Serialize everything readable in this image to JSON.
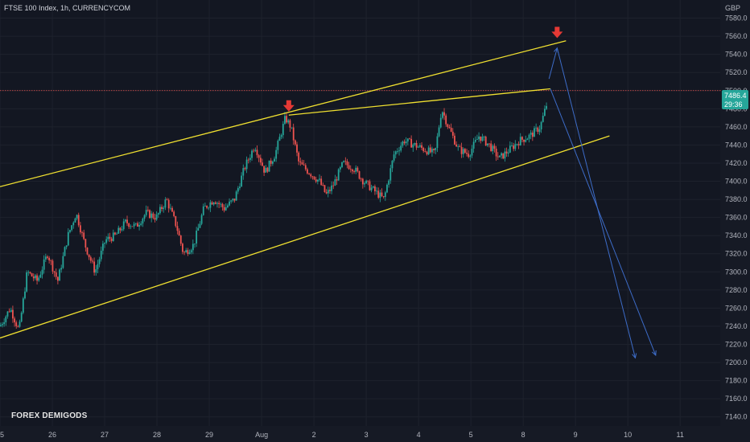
{
  "header": {
    "title": "FTSE 100 Index, 1h, CURRENCYCOM",
    "currency": "GBP"
  },
  "watermark": "FOREX DEMIGODS",
  "price_tag": {
    "price": "7486.4",
    "countdown": "29:36"
  },
  "colors": {
    "background": "#161a25",
    "up": "#26a69a",
    "down": "#ef5350",
    "channel": "#f0e030",
    "projection": "#3d6cc8",
    "marker": "#e53935",
    "price_tag": "#26a69a"
  },
  "chart_data": {
    "type": "candlestick",
    "title": "FTSE 100 Index, 1h, CURRENCYCOM",
    "ylabel": "GBP",
    "ylim": [
      7130,
      7600
    ],
    "xlim": [
      0,
      1060
    ],
    "yticks": [
      7580.0,
      7560.0,
      7540.0,
      7520.0,
      7500.0,
      7480.0,
      7460.0,
      7440.0,
      7420.0,
      7400.0,
      7380.0,
      7360.0,
      7340.0,
      7320.0,
      7300.0,
      7280.0,
      7260.0,
      7240.0,
      7220.0,
      7200.0,
      7180.0,
      7160.0,
      7140.0
    ],
    "xticks": [
      {
        "label": "25",
        "x": 0
      },
      {
        "label": "26",
        "x": 77
      },
      {
        "label": "27",
        "x": 154
      },
      {
        "label": "28",
        "x": 231
      },
      {
        "label": "29",
        "x": 308
      },
      {
        "label": "Aug",
        "x": 385
      },
      {
        "label": "2",
        "x": 462
      },
      {
        "label": "3",
        "x": 539
      },
      {
        "label": "4",
        "x": 616
      },
      {
        "label": "5",
        "x": 693
      },
      {
        "label": "8",
        "x": 770
      },
      {
        "label": "9",
        "x": 847
      },
      {
        "label": "10",
        "x": 924
      },
      {
        "label": "11",
        "x": 1001
      }
    ],
    "last_price": 7486.4,
    "current_line": 7500,
    "price_path": [
      [
        0,
        7240
      ],
      [
        15,
        7260
      ],
      [
        28,
        7235
      ],
      [
        40,
        7300
      ],
      [
        55,
        7290
      ],
      [
        70,
        7320
      ],
      [
        85,
        7290
      ],
      [
        100,
        7340
      ],
      [
        112,
        7365
      ],
      [
        125,
        7330
      ],
      [
        140,
        7300
      ],
      [
        155,
        7335
      ],
      [
        170,
        7340
      ],
      [
        185,
        7355
      ],
      [
        200,
        7350
      ],
      [
        215,
        7365
      ],
      [
        230,
        7360
      ],
      [
        245,
        7380
      ],
      [
        260,
        7350
      ],
      [
        270,
        7320
      ],
      [
        285,
        7330
      ],
      [
        300,
        7370
      ],
      [
        315,
        7380
      ],
      [
        330,
        7370
      ],
      [
        345,
        7380
      ],
      [
        360,
        7415
      ],
      [
        375,
        7440
      ],
      [
        390,
        7410
      ],
      [
        405,
        7430
      ],
      [
        420,
        7470
      ],
      [
        428,
        7460
      ],
      [
        440,
        7420
      ],
      [
        455,
        7410
      ],
      [
        470,
        7400
      ],
      [
        480,
        7385
      ],
      [
        490,
        7395
      ],
      [
        505,
        7420
      ],
      [
        520,
        7415
      ],
      [
        535,
        7400
      ],
      [
        550,
        7390
      ],
      [
        565,
        7380
      ],
      [
        580,
        7430
      ],
      [
        595,
        7445
      ],
      [
        610,
        7440
      ],
      [
        625,
        7435
      ],
      [
        640,
        7430
      ],
      [
        650,
        7480
      ],
      [
        660,
        7460
      ],
      [
        675,
        7435
      ],
      [
        690,
        7430
      ],
      [
        705,
        7450
      ],
      [
        720,
        7440
      ],
      [
        735,
        7425
      ],
      [
        750,
        7435
      ],
      [
        765,
        7445
      ],
      [
        780,
        7450
      ],
      [
        795,
        7460
      ],
      [
        805,
        7486
      ]
    ],
    "channel_lines": [
      {
        "name": "upper",
        "x1": 0,
        "y1": 7394,
        "x2": 833,
        "y2": 7555
      },
      {
        "name": "lower",
        "x1": 0,
        "y1": 7227,
        "x2": 897,
        "y2": 7450
      },
      {
        "name": "top",
        "x1": 425,
        "y1": 7473,
        "x2": 810,
        "y2": 7502
      }
    ],
    "projections": [
      {
        "name": "rally",
        "points": [
          [
            808,
            7513
          ],
          [
            820,
            7547
          ]
        ]
      },
      {
        "name": "drop-1",
        "points": [
          [
            820,
            7547
          ],
          [
            935,
            7205
          ]
        ]
      },
      {
        "name": "drop-2",
        "points": [
          [
            810,
            7502
          ],
          [
            965,
            7208
          ]
        ]
      }
    ],
    "markers": [
      {
        "name": "top-1",
        "x": 425,
        "y": 7477
      },
      {
        "name": "top-2",
        "x": 820,
        "y": 7558
      }
    ]
  }
}
